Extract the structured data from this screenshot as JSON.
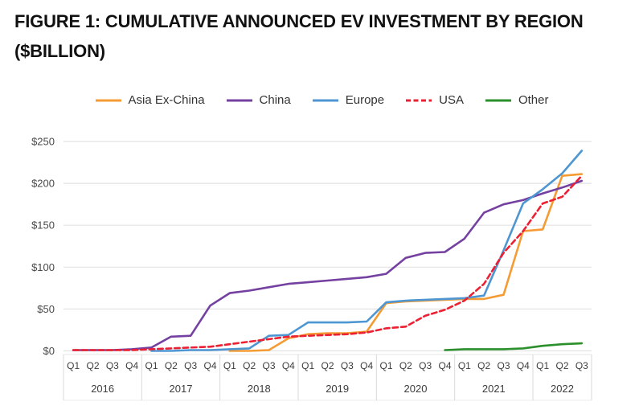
{
  "title": "FIGURE 1: CUMULATIVE ANNOUNCED EV INVESTMENT BY REGION ($BILLION)",
  "chart_data": {
    "type": "line",
    "quarters": [
      "Q1",
      "Q2",
      "Q3",
      "Q4",
      "Q1",
      "Q2",
      "Q3",
      "Q4",
      "Q1",
      "Q2",
      "Q3",
      "Q4",
      "Q1",
      "Q2",
      "Q3",
      "Q4",
      "Q1",
      "Q2",
      "Q3",
      "Q4",
      "Q1",
      "Q2",
      "Q3",
      "Q4",
      "Q1",
      "Q2",
      "Q3"
    ],
    "year_groups": [
      {
        "label": "2016",
        "quarters": 4
      },
      {
        "label": "2017",
        "quarters": 4
      },
      {
        "label": "2018",
        "quarters": 4
      },
      {
        "label": "2019",
        "quarters": 4
      },
      {
        "label": "2020",
        "quarters": 4
      },
      {
        "label": "2021",
        "quarters": 4
      },
      {
        "label": "2022",
        "quarters": 3
      }
    ],
    "y_ticks": [
      "$0",
      "$50",
      "$100",
      "$150",
      "$200",
      "$250"
    ],
    "ylim": [
      0,
      250
    ],
    "grid": true,
    "legend_position": "top",
    "units": "$ billion, cumulative",
    "series": [
      {
        "name": "Asia Ex-China",
        "color": "#F49B33",
        "dash": false,
        "values": [
          null,
          null,
          null,
          null,
          null,
          null,
          null,
          null,
          0,
          0,
          1,
          15,
          20,
          21,
          21,
          23,
          57,
          59,
          60,
          61,
          62,
          62,
          67,
          143,
          145,
          209,
          211
        ]
      },
      {
        "name": "China",
        "color": "#7541A1",
        "dash": false,
        "values": [
          1,
          1,
          1,
          2,
          4,
          17,
          18,
          54,
          69,
          72,
          76,
          80,
          82,
          84,
          86,
          88,
          92,
          111,
          117,
          118,
          134,
          165,
          175,
          180,
          188,
          195,
          203
        ]
      },
      {
        "name": "Europe",
        "color": "#4D96D2",
        "dash": false,
        "values": [
          null,
          null,
          null,
          null,
          0,
          0,
          1,
          1,
          2,
          3,
          18,
          19,
          34,
          34,
          34,
          35,
          58,
          60,
          61,
          62,
          63,
          66,
          120,
          176,
          193,
          212,
          239
        ]
      },
      {
        "name": "USA",
        "color": "#EC2033",
        "dash": true,
        "values": [
          1,
          1,
          1,
          1,
          2,
          3,
          4,
          5,
          8,
          11,
          14,
          17,
          18,
          19,
          20,
          22,
          27,
          29,
          42,
          49,
          60,
          80,
          117,
          143,
          176,
          184,
          209
        ]
      },
      {
        "name": "Other",
        "color": "#2B8F2B",
        "dash": false,
        "values": [
          null,
          null,
          null,
          null,
          null,
          null,
          null,
          null,
          null,
          null,
          null,
          null,
          null,
          null,
          null,
          null,
          null,
          null,
          null,
          1,
          2,
          2,
          2,
          3,
          6,
          8,
          9
        ]
      }
    ]
  }
}
